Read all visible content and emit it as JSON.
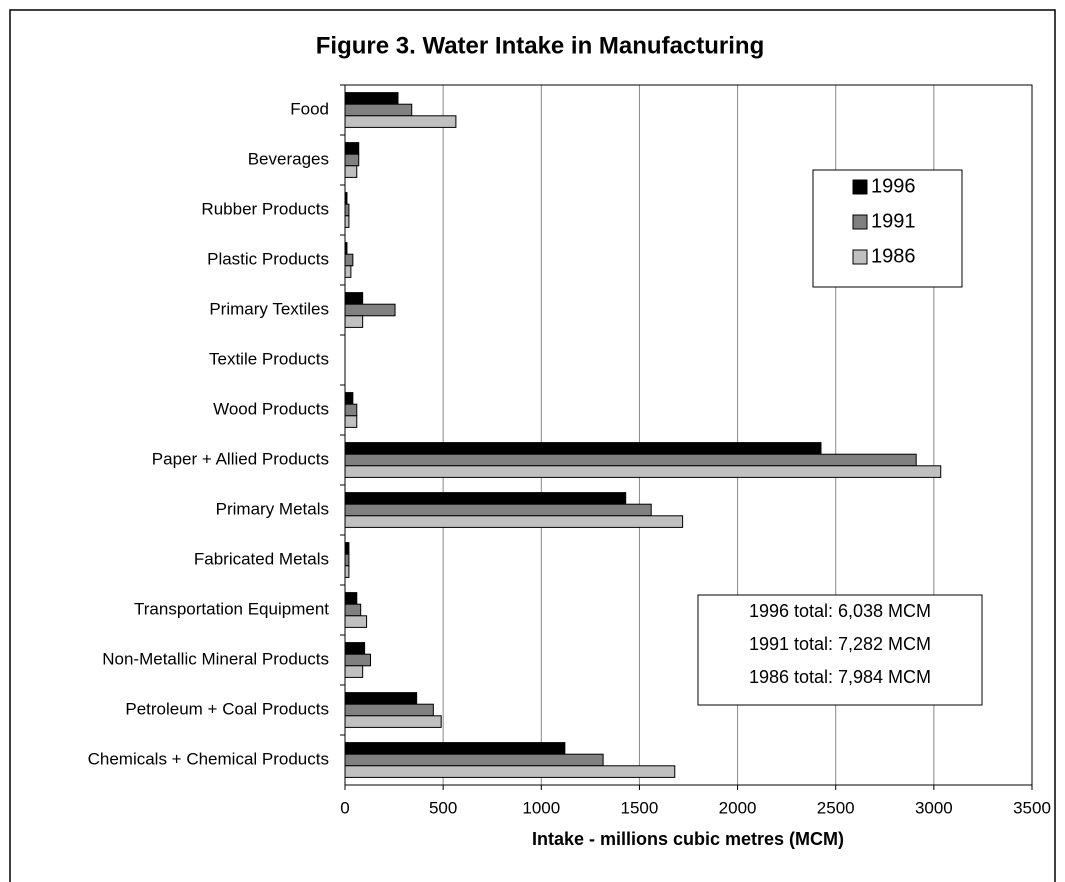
{
  "chart_data": {
    "type": "hbar",
    "title": "Figure 3.  Water Intake in Manufacturing",
    "xlabel": "Intake - millions cubic metres (MCM)",
    "categories": [
      "Food",
      "Beverages",
      "Rubber Products",
      "Plastic Products",
      "Primary Textiles",
      "Textile Products",
      "Wood Products",
      "Paper + Allied Products",
      "Primary Metals",
      "Fabricated Metals",
      "Transportation Equipment",
      "Non-Metallic Mineral Products",
      "Petroleum + Coal Products",
      "Chemicals + Chemical Products"
    ],
    "series": [
      {
        "name": "1996",
        "color": "#000000",
        "values": [
          270,
          70,
          10,
          10,
          90,
          0,
          40,
          2425,
          1430,
          20,
          60,
          100,
          365,
          1120
        ]
      },
      {
        "name": "1991",
        "color": "#808080",
        "values": [
          340,
          70,
          20,
          40,
          255,
          0,
          60,
          2910,
          1560,
          20,
          80,
          130,
          450,
          1315
        ]
      },
      {
        "name": "1986",
        "color": "#c0c0c0",
        "values": [
          565,
          60,
          20,
          30,
          90,
          0,
          60,
          3035,
          1720,
          20,
          110,
          90,
          490,
          1680
        ]
      }
    ],
    "xlim": [
      0,
      3500
    ],
    "xticks": [
      0,
      500,
      1000,
      1500,
      2000,
      2500,
      3000,
      3500
    ],
    "grid": true,
    "annotations": [
      "1996 total: 6,038 MCM",
      "1991 total: 7,282 MCM",
      "1986 total: 7,984 MCM"
    ]
  }
}
